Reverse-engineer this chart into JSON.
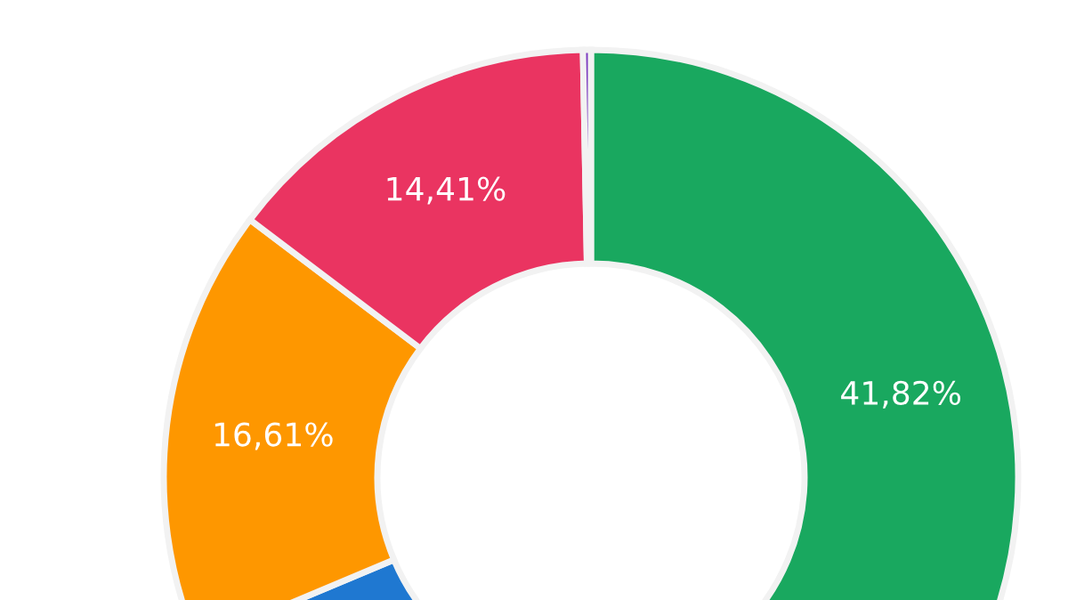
{
  "chart_data": {
    "type": "donut",
    "categories": [
      null,
      null,
      null,
      null,
      null
    ],
    "values": [
      41.82,
      26.86,
      16.61,
      14.41,
      0.3
    ],
    "colors": [
      "#19a85f",
      "#1f78d1",
      "#fe9700",
      "#ea3461",
      "#7d3cc0"
    ],
    "value_labels": [
      "41,82%",
      null,
      "16,61%",
      "14,41%",
      null
    ]
  }
}
